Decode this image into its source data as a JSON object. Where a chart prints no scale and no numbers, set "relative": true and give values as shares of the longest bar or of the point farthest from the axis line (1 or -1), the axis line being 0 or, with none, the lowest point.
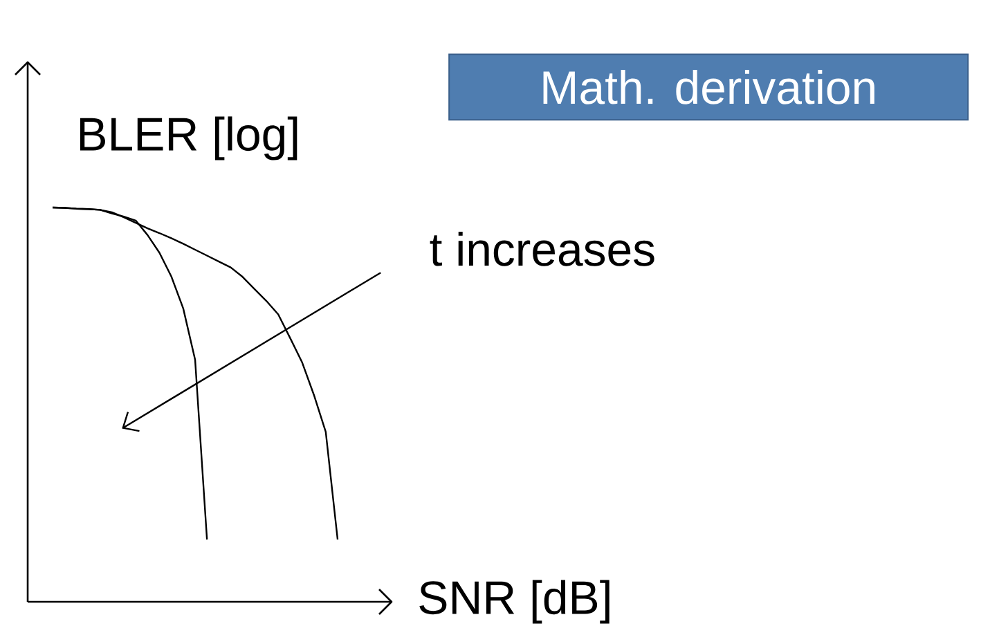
{
  "chart_data": {
    "type": "line",
    "title": "Math. derivation",
    "xlabel": "SNR [dB]",
    "ylabel": "BLER [log]",
    "annotations": [
      "t increases"
    ],
    "relative": true,
    "marker": "none",
    "line_style": "solid",
    "categories": [
      null,
      null,
      null,
      null,
      null,
      null,
      null,
      null,
      null,
      null,
      null,
      null,
      null,
      null,
      null,
      null,
      null,
      null,
      null,
      null,
      null,
      null,
      null,
      null,
      null
    ],
    "series": [
      {
        "color": "#000000",
        "values": [
          1.0,
          0.999,
          0.997,
          0.996,
          0.994,
          0.985,
          0.977,
          0.967,
          0.93,
          0.885,
          0.825,
          0.744,
          0.614,
          0.158,
          null,
          null,
          null,
          null,
          null,
          null,
          null,
          null,
          null,
          null,
          null
        ]
      },
      {
        "color": "#000000",
        "values": [
          1.0,
          0.999,
          0.997,
          0.996,
          0.994,
          0.988,
          0.975,
          0.961,
          0.947,
          0.935,
          0.922,
          0.908,
          0.893,
          0.878,
          0.863,
          0.848,
          0.824,
          0.793,
          0.763,
          0.729,
          0.669,
          0.608,
          0.525,
          0.431,
          0.158
        ]
      }
    ]
  }
}
